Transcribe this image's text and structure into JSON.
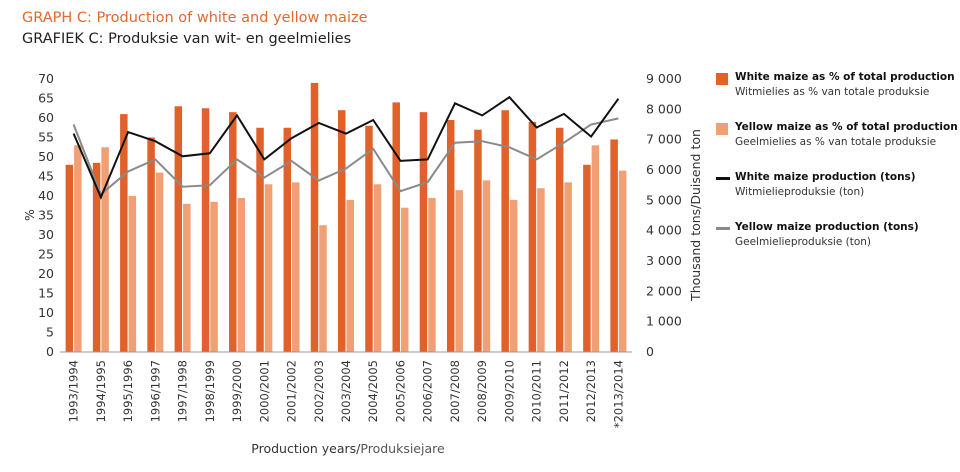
{
  "title": "GRAPH C: Production of white and yellow maize",
  "subtitle": "GRAFIEK C: Produksie van wit- en geelmielies",
  "colors": {
    "white_bar": "#e0622a",
    "yellow_bar": "#f0a074",
    "white_line": "#111111",
    "yellow_line": "#8a8a8a",
    "title": "#e0692f"
  },
  "legend": [
    {
      "en": "White maize as % of total production",
      "af": "Witmielies as % van totale produksie"
    },
    {
      "en": "Yellow maize as % of total production",
      "af": "Geelmielies as % van totale produksie"
    },
    {
      "en": "White maize production (tons)",
      "af": "Witmielieproduksie (ton)"
    },
    {
      "en": "Yellow maize production (tons)",
      "af": "Geelmielieproduksie (ton)"
    }
  ],
  "chart_data": {
    "type": "bar",
    "title": "GRAPH C: Production of white and yellow maize",
    "xlabel_en": "Production years/",
    "xlabel_af": "Produksiejare",
    "ylabel_left": "%",
    "ylabel_right": "Thousand tons/Duisend ton",
    "ylim_left": [
      0,
      70
    ],
    "ylim_right": [
      0,
      9000
    ],
    "yticks_left": [
      "0",
      "5",
      "10",
      "15",
      "20",
      "25",
      "30",
      "35",
      "40",
      "45",
      "50",
      "55",
      "60",
      "65",
      "70"
    ],
    "yticks_right": [
      "0",
      "1 000",
      "2 000",
      "3 000",
      "4 000",
      "5 000",
      "6 000",
      "7 000",
      "8 000",
      "9 000"
    ],
    "legend_position": "right",
    "grid": false,
    "categories": [
      "1993/1994",
      "1994/1995",
      "1995/1996",
      "1996/1997",
      "1997/1998",
      "1998/1999",
      "1999/2000",
      "2000/2001",
      "2001/2002",
      "2002/2003",
      "2003/2004",
      "2004/2005",
      "2005/2006",
      "2006/2007",
      "2007/2008",
      "2008/2009",
      "2009/2010",
      "2010/2011",
      "2011/2012",
      "2012/2013",
      "*2013/2014"
    ],
    "series": [
      {
        "name": "White maize as % of total production",
        "type": "bar",
        "axis": "left",
        "values": [
          48,
          48.5,
          61,
          55,
          63,
          62.5,
          61.5,
          57.5,
          57.5,
          69,
          62,
          58,
          64,
          61.5,
          59.5,
          57,
          62,
          59,
          57.5,
          48,
          54.5
        ]
      },
      {
        "name": "Yellow maize as % of total production",
        "type": "bar",
        "axis": "left",
        "values": [
          53,
          52.5,
          40,
          46,
          38,
          38.5,
          39.5,
          43,
          43.5,
          32.5,
          39,
          43,
          37,
          39.5,
          41.5,
          44,
          39,
          42,
          43.5,
          53,
          46.5
        ]
      },
      {
        "name": "White maize production (tons)",
        "type": "line",
        "axis": "right",
        "values": [
          7200,
          5100,
          7250,
          6950,
          6450,
          6550,
          7800,
          6350,
          7050,
          7550,
          7200,
          7650,
          6300,
          6350,
          8200,
          7800,
          8400,
          7400,
          7850,
          7100,
          8350
        ]
      },
      {
        "name": "Yellow maize production (tons)",
        "type": "line",
        "axis": "right",
        "values": [
          7500,
          5200,
          5950,
          6350,
          5450,
          5500,
          6350,
          5750,
          6300,
          5650,
          6050,
          6700,
          5300,
          5600,
          6900,
          6950,
          6750,
          6350,
          6900,
          7500,
          7700
        ]
      }
    ]
  }
}
